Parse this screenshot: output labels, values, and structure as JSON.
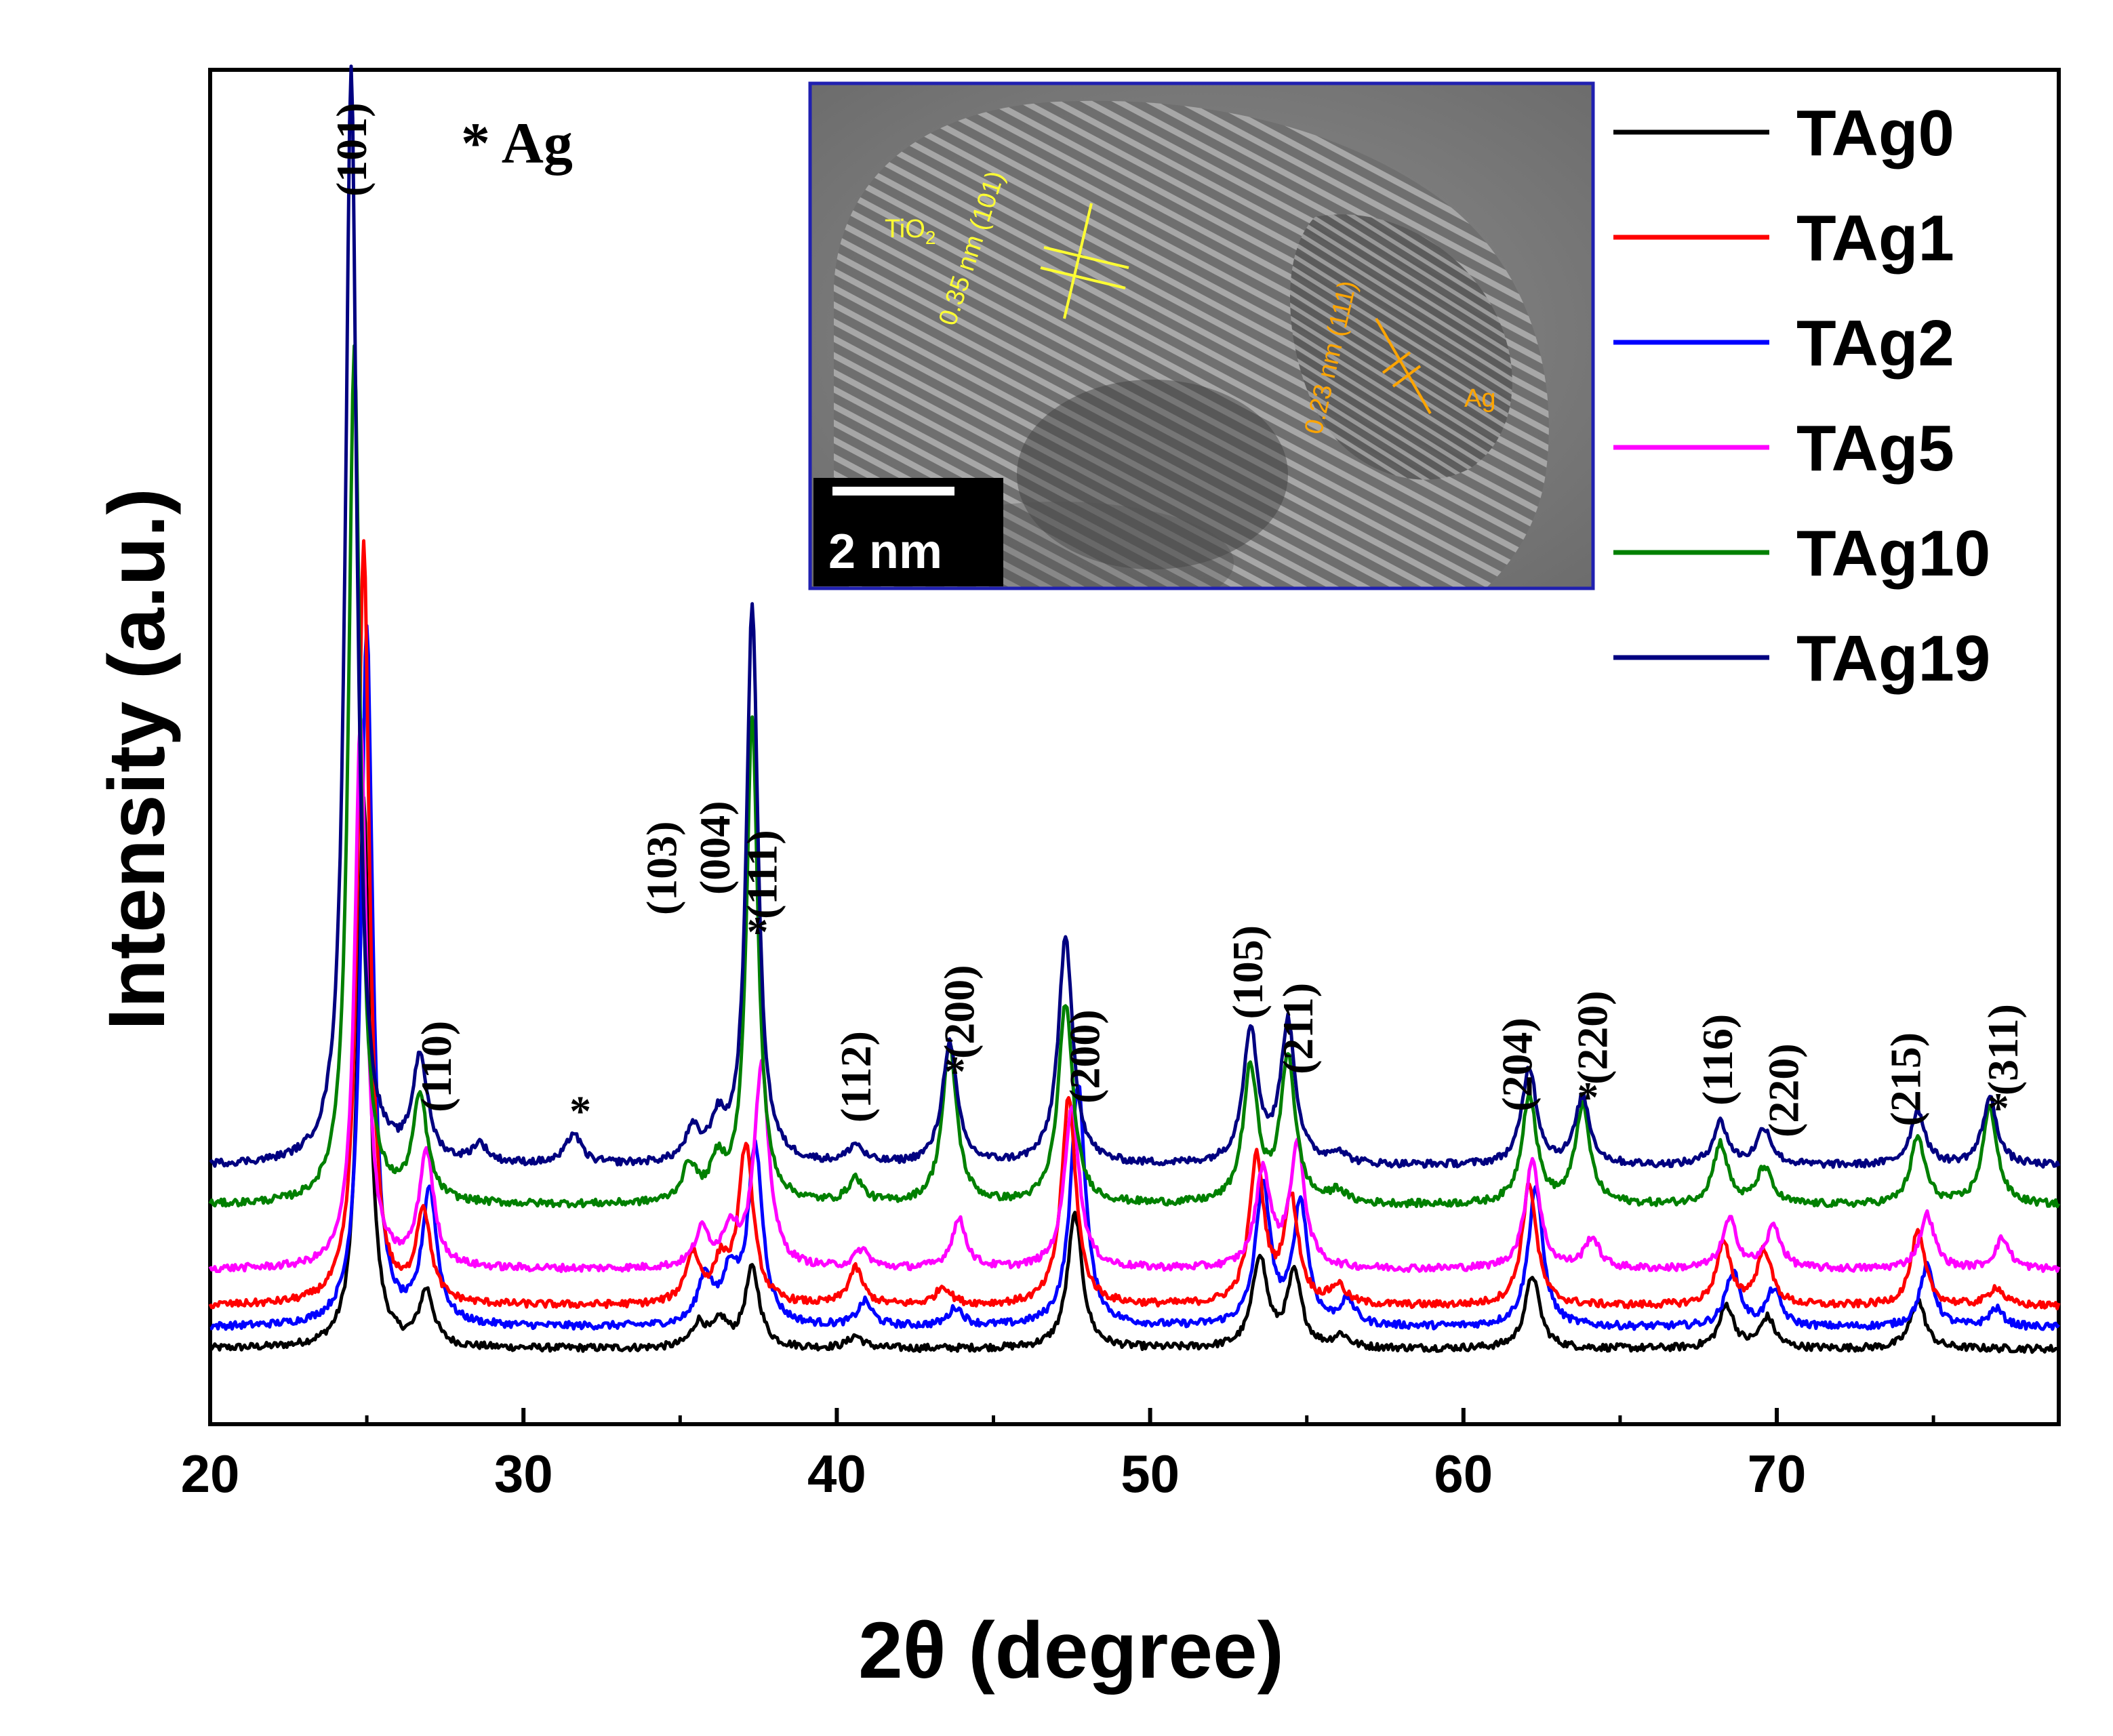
{
  "chart_data": {
    "type": "line",
    "title": "",
    "xlabel": "2θ (degree)",
    "ylabel": "Intensity (a.u.)",
    "xlim": [
      20,
      79
    ],
    "x_ticks": [
      20,
      30,
      40,
      50,
      60,
      70
    ],
    "y_ticks": [],
    "grid": false,
    "legend_position": "top-right",
    "ag_note": "* Ag",
    "series": [
      {
        "name": "TAg0",
        "color": "#000000",
        "baseline": 0.0,
        "peaks": [
          [
            24.9,
            9.0
          ],
          [
            26.9,
            0.9
          ],
          [
            35.6,
            0.4
          ],
          [
            36.3,
            0.4
          ],
          [
            37.3,
            1.3
          ],
          [
            40.6,
            0.2
          ],
          [
            47.6,
            2.2
          ],
          [
            53.5,
            1.5
          ],
          [
            54.6,
            1.2
          ],
          [
            56.1,
            0.2
          ],
          [
            62.2,
            1.2
          ],
          [
            68.4,
            0.7
          ],
          [
            69.7,
            0.5
          ],
          [
            74.5,
            0.8
          ]
        ]
      },
      {
        "name": "TAg2",
        "color": "#0000ff",
        "baseline": 0.35,
        "peaks": [
          [
            25.0,
            11.5
          ],
          [
            27.0,
            2.2
          ],
          [
            35.8,
            0.8
          ],
          [
            36.6,
            0.8
          ],
          [
            37.4,
            2.9
          ],
          [
            40.9,
            0.4
          ],
          [
            43.8,
            0.3
          ],
          [
            47.7,
            4.0
          ],
          [
            53.6,
            2.3
          ],
          [
            54.8,
            2.0
          ],
          [
            56.3,
            0.4
          ],
          [
            62.3,
            2.3
          ],
          [
            68.6,
            0.9
          ],
          [
            69.9,
            0.6
          ],
          [
            74.8,
            1.0
          ],
          [
            77.0,
            0.3
          ]
        ]
      },
      {
        "name": "TAg1",
        "color": "#ff0000",
        "baseline": 0.7,
        "peaks": [
          [
            24.9,
            12.5
          ],
          [
            26.8,
            1.5
          ],
          [
            35.4,
            0.8
          ],
          [
            36.3,
            0.6
          ],
          [
            37.1,
            2.6
          ],
          [
            40.6,
            0.6
          ],
          [
            43.4,
            0.3
          ],
          [
            47.4,
            3.4
          ],
          [
            53.4,
            2.4
          ],
          [
            54.5,
            1.7
          ],
          [
            56.0,
            0.3
          ],
          [
            62.1,
            2.0
          ],
          [
            68.3,
            1.0
          ],
          [
            69.6,
            0.9
          ],
          [
            74.5,
            1.2
          ],
          [
            77.0,
            0.3
          ]
        ]
      },
      {
        "name": "TAg5",
        "color": "#ff00ff",
        "baseline": 1.3,
        "peaks": [
          [
            24.8,
            9.0
          ],
          [
            26.9,
            1.9
          ],
          [
            35.7,
            0.6
          ],
          [
            36.6,
            0.6
          ],
          [
            37.6,
            3.3
          ],
          [
            40.8,
            0.3
          ],
          [
            43.9,
            0.8
          ],
          [
            47.5,
            2.7
          ],
          [
            53.6,
            1.6
          ],
          [
            54.7,
            2.0
          ],
          [
            62.2,
            1.8
          ],
          [
            64.1,
            0.5
          ],
          [
            68.5,
            0.8
          ],
          [
            69.9,
            0.7
          ],
          [
            74.8,
            0.9
          ],
          [
            77.2,
            0.5
          ]
        ]
      },
      {
        "name": "TAg10",
        "color": "#008000",
        "baseline": 2.35,
        "peaks": [
          [
            24.6,
            14.0
          ],
          [
            26.7,
            1.7
          ],
          [
            35.3,
            0.6
          ],
          [
            36.2,
            0.6
          ],
          [
            37.3,
            8.0
          ],
          [
            40.6,
            0.4
          ],
          [
            43.6,
            2.6
          ],
          [
            47.3,
            3.3
          ],
          [
            53.2,
            2.2
          ],
          [
            54.4,
            2.4
          ],
          [
            56.0,
            0.2
          ],
          [
            62.1,
            1.8
          ],
          [
            63.8,
            1.6
          ],
          [
            68.2,
            1.0
          ],
          [
            69.6,
            0.6
          ],
          [
            74.5,
            1.1
          ],
          [
            76.8,
            1.6
          ]
        ]
      },
      {
        "name": "TAg19",
        "color": "#000080",
        "baseline": 3.0,
        "peaks": [
          [
            24.5,
            18.0
          ],
          [
            26.7,
            1.7
          ],
          [
            28.6,
            0.3
          ],
          [
            31.6,
            0.5
          ],
          [
            35.4,
            0.5
          ],
          [
            36.2,
            0.6
          ],
          [
            37.3,
            9.2
          ],
          [
            40.6,
            0.3
          ],
          [
            43.6,
            2.0
          ],
          [
            47.3,
            3.7
          ],
          [
            53.2,
            2.2
          ],
          [
            54.4,
            2.3
          ],
          [
            56.0,
            0.2
          ],
          [
            62.1,
            1.6
          ],
          [
            63.8,
            1.1
          ],
          [
            68.2,
            0.7
          ],
          [
            69.6,
            0.6
          ],
          [
            74.5,
            0.9
          ],
          [
            76.8,
            1.1
          ]
        ]
      }
    ],
    "peak_annotations": [
      {
        "label": "(101)",
        "x": 24.5,
        "starred": false
      },
      {
        "label": "(110)",
        "x": 27.2,
        "starred": false
      },
      {
        "label": "(103)",
        "x": 34.4,
        "starred": false
      },
      {
        "label": "(004)",
        "x": 36.1,
        "starred": false
      },
      {
        "label": "(111)",
        "x": 37.6,
        "starred": true
      },
      {
        "label": "(112)",
        "x": 40.6,
        "starred": false
      },
      {
        "label": "(200)",
        "x": 43.9,
        "starred": true
      },
      {
        "label": "(200)",
        "x": 47.9,
        "starred": false
      },
      {
        "label": "(105)",
        "x": 53.1,
        "starred": false
      },
      {
        "label": "(211)",
        "x": 54.7,
        "starred": false
      },
      {
        "label": "(204)",
        "x": 61.7,
        "starred": false
      },
      {
        "label": "(220)",
        "x": 64.1,
        "starred": true
      },
      {
        "label": "(116)",
        "x": 68.1,
        "starred": false
      },
      {
        "label": "(220)",
        "x": 70.2,
        "starred": false
      },
      {
        "label": "(215)",
        "x": 74.1,
        "starred": false
      },
      {
        "label": "(311)",
        "x": 77.2,
        "starred": true
      }
    ],
    "standalone_markers": [
      {
        "label": "*",
        "x": 31.6
      }
    ],
    "inset": {
      "scale_bar": "2 nm",
      "phase_tio2": "TiO2",
      "phase_ag": "Ag",
      "d_tio2": "0.35 nm (101)",
      "d_ag": "0.23 nm (111)",
      "tio2_color": "#ffff33",
      "ag_color": "#ffa500"
    }
  }
}
